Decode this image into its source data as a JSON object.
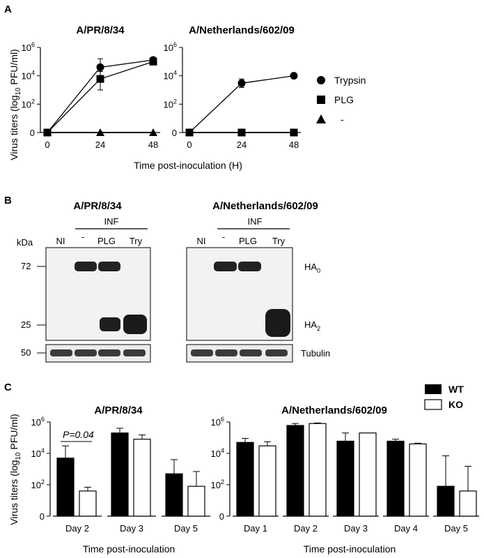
{
  "panels": {
    "A": "A",
    "B": "B",
    "C": "C"
  },
  "panel_a": {
    "y_axis_label_html": "Virus titers (log",
    "y_axis_sub": "10",
    "y_axis_tail": " PFU/ml)",
    "x_axis_label": "Time post-inoculation (H)",
    "legend": [
      "Trypsin",
      "PLG",
      "-"
    ]
  },
  "panel_b": {
    "kda_label": "kDa",
    "markers": [
      "72",
      "25",
      "50"
    ],
    "blots": [
      {
        "title": "A/PR/8/34",
        "inf_label": "INF",
        "lanes": [
          "NI",
          "-",
          "PLG",
          "Try"
        ]
      },
      {
        "title": "A/Netherlands/602/09",
        "inf_label": "INF",
        "lanes": [
          "NI",
          "-",
          "PLG",
          "Try"
        ]
      }
    ],
    "band_labels": {
      "ha0": "HA",
      "ha0_sub": "0",
      "ha2": "HA",
      "ha2_sub": "2",
      "tubulin": "Tubulin"
    }
  },
  "panel_c": {
    "y_axis_label": "Virus titers (log",
    "y_axis_sub": "10",
    "y_axis_tail": " PFU/ml)",
    "x_axis_label": "Time post-inoculation",
    "legend": [
      "WT",
      "KO"
    ],
    "annotation": "P=0.04"
  },
  "chart_data": [
    {
      "type": "line",
      "title": "A/PR/8/34",
      "x": [
        0,
        24,
        48
      ],
      "xlabel": "Time post-inoculation (H)",
      "ylabel": "Virus titers (log10 PFU/ml)",
      "yscale": "log",
      "y_ticks": [
        "0",
        "10^2",
        "10^4",
        "10^6"
      ],
      "series": [
        {
          "name": "Trypsin",
          "marker": "circle",
          "values": [
            1,
            40000,
            130000
          ],
          "err_hi": [
            null,
            160000,
            null
          ],
          "err_lo": [
            null,
            10000,
            null
          ]
        },
        {
          "name": "PLG",
          "marker": "square",
          "values": [
            1,
            6000,
            100000
          ],
          "err_hi": [
            null,
            20000,
            null
          ],
          "err_lo": [
            null,
            1000,
            null
          ]
        },
        {
          "name": "-",
          "marker": "triangle",
          "values": [
            1,
            1,
            1
          ]
        }
      ]
    },
    {
      "type": "line",
      "title": "A/Netherlands/602/09",
      "x": [
        0,
        24,
        48
      ],
      "xlabel": "Time post-inoculation (H)",
      "ylabel": "Virus titers (log10 PFU/ml)",
      "yscale": "log",
      "y_ticks": [
        "0",
        "10^2",
        "10^4",
        "10^6"
      ],
      "series": [
        {
          "name": "Trypsin",
          "marker": "circle",
          "values": [
            1,
            3000,
            10000
          ],
          "err_hi": [
            null,
            6000,
            null
          ],
          "err_lo": [
            null,
            1500,
            null
          ]
        },
        {
          "name": "PLG",
          "marker": "square",
          "values": [
            1,
            1,
            1
          ]
        },
        {
          "name": "-",
          "marker": "triangle",
          "values": [
            1,
            1,
            1
          ]
        }
      ]
    },
    {
      "type": "bar",
      "title": "A/PR/8/34",
      "categories": [
        "Day 2",
        "Day 3",
        "Day 5"
      ],
      "xlabel": "Time post-inoculation",
      "ylabel": "Virus titers (log10 PFU/ml)",
      "yscale": "log",
      "y_ticks": [
        "0",
        "10^2",
        "10^4",
        "10^6"
      ],
      "series": [
        {
          "name": "WT",
          "values": [
            5000,
            200000,
            500
          ],
          "err_hi": [
            30000,
            400000,
            4000
          ]
        },
        {
          "name": "KO",
          "values": [
            40,
            80000,
            80
          ],
          "err_hi": [
            70,
            150000,
            700
          ]
        }
      ]
    },
    {
      "type": "bar",
      "title": "A/Netherlands/602/09",
      "categories": [
        "Day 1",
        "Day 2",
        "Day 3",
        "Day 4",
        "Day 5"
      ],
      "xlabel": "Time post-inoculation",
      "ylabel": "Virus titers (log10 PFU/ml)",
      "yscale": "log",
      "y_ticks": [
        "0",
        "10^2",
        "10^4",
        "10^6"
      ],
      "series": [
        {
          "name": "WT",
          "values": [
            50000,
            600000,
            60000,
            60000,
            80
          ],
          "err_hi": [
            90000,
            800000,
            200000,
            80000,
            7000
          ]
        },
        {
          "name": "KO",
          "values": [
            30000,
            800000,
            200000,
            40000,
            40
          ],
          "err_hi": [
            55000,
            870000,
            null,
            45000,
            1500
          ]
        }
      ]
    }
  ]
}
